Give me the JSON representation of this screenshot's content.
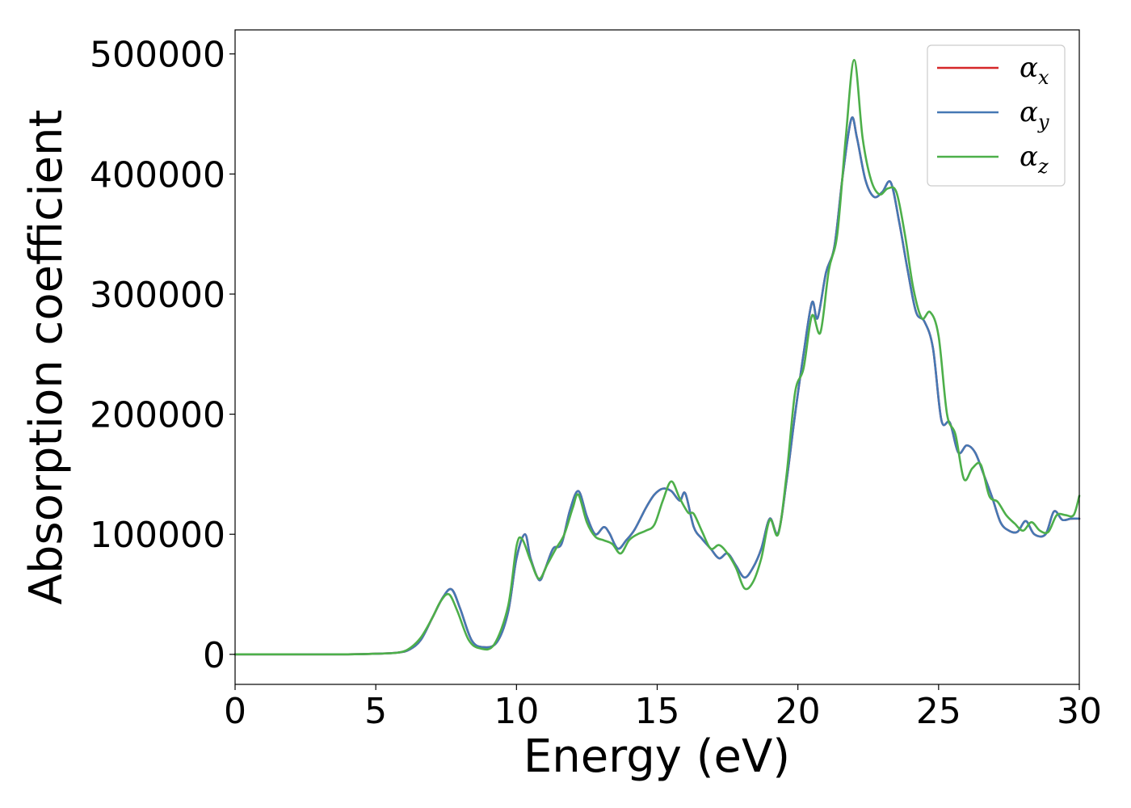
{
  "chart_data": {
    "type": "line",
    "xlabel": "Energy (eV)",
    "ylabel": "Absorption coefficient",
    "xlim": [
      0,
      30
    ],
    "ylim": [
      -25000,
      520000
    ],
    "x_ticks": [
      "0",
      "5",
      "10",
      "15",
      "20",
      "25",
      "30"
    ],
    "y_ticks": [
      "0",
      "100000",
      "200000",
      "300000",
      "400000",
      "500000"
    ],
    "grid": false,
    "legend_position": "top-right",
    "series": [
      {
        "name": "αx",
        "base": "α",
        "sub": "x",
        "color": "#d62728",
        "x": [
          0,
          2,
          4,
          5,
          5.8,
          6.2,
          6.6,
          7.0,
          7.4,
          7.7,
          8.0,
          8.4,
          8.8,
          9.3,
          9.7,
          10.0,
          10.3,
          10.5,
          10.8,
          11.0,
          11.3,
          11.6,
          11.9,
          12.2,
          12.5,
          12.8,
          13.1,
          13.3,
          13.6,
          13.9,
          14.2,
          14.6,
          14.9,
          15.2,
          15.5,
          15.8,
          16.0,
          16.3,
          16.6,
          16.9,
          17.2,
          17.5,
          17.8,
          18.1,
          18.4,
          18.7,
          19.0,
          19.3,
          19.6,
          19.9,
          20.2,
          20.5,
          20.7,
          21.0,
          21.3,
          21.6,
          21.9,
          22.1,
          22.4,
          22.7,
          23.0,
          23.3,
          23.6,
          23.9,
          24.2,
          24.5,
          24.8,
          25.1,
          25.4,
          25.7,
          26.0,
          26.3,
          26.6,
          26.9,
          27.2,
          27.5,
          27.8,
          28.1,
          28.4,
          28.8,
          29.1,
          29.4,
          29.7,
          30.0
        ],
        "y": [
          0,
          0,
          0,
          500,
          1500,
          4000,
          12000,
          30000,
          48000,
          54000,
          38000,
          12000,
          6000,
          10000,
          35000,
          80000,
          100000,
          80000,
          62000,
          70000,
          88000,
          92000,
          120000,
          136000,
          115000,
          100000,
          106000,
          101000,
          88000,
          95000,
          104000,
          122000,
          133000,
          138000,
          136000,
          128000,
          134000,
          106000,
          96000,
          88000,
          80000,
          84000,
          74000,
          64000,
          72000,
          88000,
          113000,
          101000,
          145000,
          200000,
          250000,
          293000,
          280000,
          318000,
          340000,
          400000,
          446000,
          430000,
          395000,
          381000,
          385000,
          393000,
          360000,
          320000,
          285000,
          277000,
          255000,
          195000,
          193000,
          168000,
          174000,
          168000,
          150000,
          131000,
          110000,
          103000,
          102000,
          111000,
          100000,
          100000,
          119000,
          112000,
          113000,
          113000
        ]
      },
      {
        "name": "αy",
        "base": "α",
        "sub": "y",
        "color": "#4578b4",
        "x": [
          0,
          2,
          4,
          5,
          5.8,
          6.2,
          6.6,
          7.0,
          7.4,
          7.7,
          8.0,
          8.4,
          8.8,
          9.3,
          9.7,
          10.0,
          10.3,
          10.5,
          10.8,
          11.0,
          11.3,
          11.6,
          11.9,
          12.2,
          12.5,
          12.8,
          13.1,
          13.3,
          13.6,
          13.9,
          14.2,
          14.6,
          14.9,
          15.2,
          15.5,
          15.8,
          16.0,
          16.3,
          16.6,
          16.9,
          17.2,
          17.5,
          17.8,
          18.1,
          18.4,
          18.7,
          19.0,
          19.3,
          19.6,
          19.9,
          20.2,
          20.5,
          20.7,
          21.0,
          21.3,
          21.6,
          21.9,
          22.1,
          22.4,
          22.7,
          23.0,
          23.3,
          23.6,
          23.9,
          24.2,
          24.5,
          24.8,
          25.1,
          25.4,
          25.7,
          26.0,
          26.3,
          26.6,
          26.9,
          27.2,
          27.5,
          27.8,
          28.1,
          28.4,
          28.8,
          29.1,
          29.4,
          29.7,
          30.0
        ],
        "y": [
          0,
          0,
          0,
          500,
          1500,
          4000,
          12000,
          30000,
          48000,
          54000,
          38000,
          12000,
          6000,
          10000,
          35000,
          80000,
          100000,
          80000,
          62000,
          70000,
          88000,
          92000,
          120000,
          136000,
          115000,
          100000,
          106000,
          101000,
          88000,
          95000,
          104000,
          122000,
          133000,
          138000,
          136000,
          128000,
          134000,
          106000,
          96000,
          88000,
          80000,
          84000,
          74000,
          64000,
          72000,
          88000,
          113000,
          101000,
          145000,
          200000,
          250000,
          293000,
          280000,
          318000,
          340000,
          400000,
          446000,
          430000,
          395000,
          381000,
          385000,
          393000,
          360000,
          320000,
          285000,
          277000,
          255000,
          195000,
          193000,
          168000,
          174000,
          168000,
          150000,
          131000,
          110000,
          103000,
          102000,
          111000,
          100000,
          100000,
          119000,
          112000,
          113000,
          113000
        ]
      },
      {
        "name": "αz",
        "base": "α",
        "sub": "z",
        "color": "#4daf4a",
        "x": [
          0,
          2,
          4,
          5,
          5.8,
          6.2,
          6.6,
          7.0,
          7.3,
          7.6,
          7.9,
          8.3,
          8.7,
          9.2,
          9.7,
          10.0,
          10.2,
          10.5,
          10.8,
          11.1,
          11.4,
          11.7,
          12.0,
          12.2,
          12.5,
          12.8,
          13.1,
          13.4,
          13.7,
          14.0,
          14.3,
          14.6,
          14.9,
          15.2,
          15.5,
          15.8,
          16.1,
          16.3,
          16.6,
          16.9,
          17.2,
          17.5,
          17.8,
          18.1,
          18.4,
          18.7,
          19.0,
          19.3,
          19.6,
          19.9,
          20.2,
          20.5,
          20.8,
          21.1,
          21.4,
          21.7,
          22.0,
          22.3,
          22.6,
          22.9,
          23.2,
          23.5,
          23.8,
          24.1,
          24.4,
          24.7,
          25.0,
          25.3,
          25.6,
          25.9,
          26.2,
          26.5,
          26.8,
          27.1,
          27.4,
          27.7,
          28.0,
          28.3,
          28.6,
          28.9,
          29.2,
          29.5,
          29.8,
          30.0
        ],
        "y": [
          0,
          0,
          0,
          500,
          1500,
          5000,
          14000,
          30000,
          44000,
          50000,
          36000,
          12000,
          5000,
          8000,
          40000,
          90000,
          96000,
          78000,
          63000,
          75000,
          88000,
          100000,
          122000,
          133000,
          110000,
          98000,
          95000,
          92000,
          84000,
          95000,
          100000,
          103000,
          108000,
          128000,
          144000,
          130000,
          118000,
          117000,
          102000,
          88000,
          91000,
          84000,
          72000,
          55000,
          60000,
          80000,
          112000,
          100000,
          150000,
          218000,
          238000,
          282000,
          268000,
          320000,
          350000,
          430000,
          495000,
          430000,
          395000,
          383000,
          388000,
          385000,
          350000,
          305000,
          280000,
          285000,
          265000,
          200000,
          183000,
          146000,
          155000,
          158000,
          132000,
          127000,
          116000,
          109000,
          103000,
          110000,
          103000,
          102000,
          116000,
          116000,
          116000,
          132000
        ]
      }
    ]
  }
}
